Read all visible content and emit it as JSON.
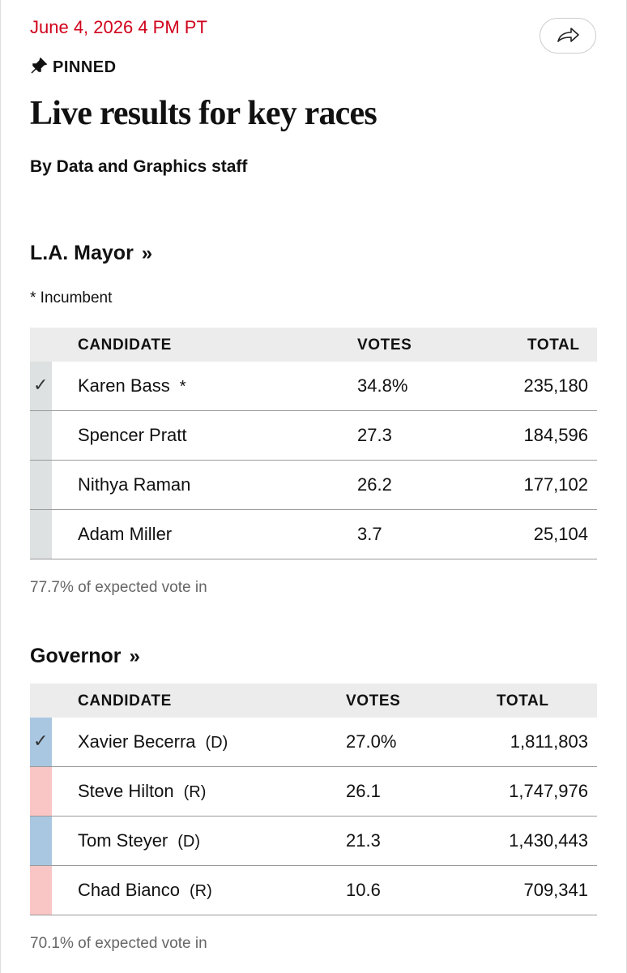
{
  "header": {
    "timestamp": "June 4, 2026 4 PM PT",
    "pinned": "PINNED",
    "title": "Live results for key races",
    "byline": "By Data and Graphics staff"
  },
  "races": [
    {
      "name": "L.A. Mayor",
      "link_mark": "»",
      "note": "* Incumbent",
      "columns": [
        "CANDIDATE",
        "VOTES",
        "TOTAL"
      ],
      "rows": [
        {
          "check": "✓",
          "name": "Karen Bass",
          "tag": "*",
          "votes": "34.8%",
          "total": "235,180",
          "color": "#dde1e1"
        },
        {
          "name": "Spencer Pratt",
          "votes": "27.3",
          "total": "184,596",
          "color": "#dde1e1"
        },
        {
          "name": "Nithya Raman",
          "votes": "26.2",
          "total": "177,102",
          "color": "#dde1e1"
        },
        {
          "name": "Adam Miller",
          "votes": "3.7",
          "total": "25,104",
          "color": "#dde1e1"
        }
      ],
      "footer": "77.7% of expected vote in"
    },
    {
      "name": "Governor",
      "link_mark": "»",
      "columns": [
        "CANDIDATE",
        "VOTES",
        "TOTAL"
      ],
      "rows": [
        {
          "check": "✓",
          "name": "Xavier Becerra",
          "tag": "(D)",
          "votes": "27.0%",
          "total": "1,811,803",
          "color": "#a9c7e1"
        },
        {
          "name": "Steve Hilton",
          "tag": "(R)",
          "votes": "26.1",
          "total": "1,747,976",
          "color": "#f9c5c5"
        },
        {
          "name": "Tom Steyer",
          "tag": "(D)",
          "votes": "21.3",
          "total": "1,430,443",
          "color": "#a9c7e1"
        },
        {
          "name": "Chad Bianco",
          "tag": "(R)",
          "votes": "10.6",
          "total": "709,341",
          "color": "#f9c5c5"
        }
      ],
      "footer": "70.1% of expected vote in"
    }
  ]
}
